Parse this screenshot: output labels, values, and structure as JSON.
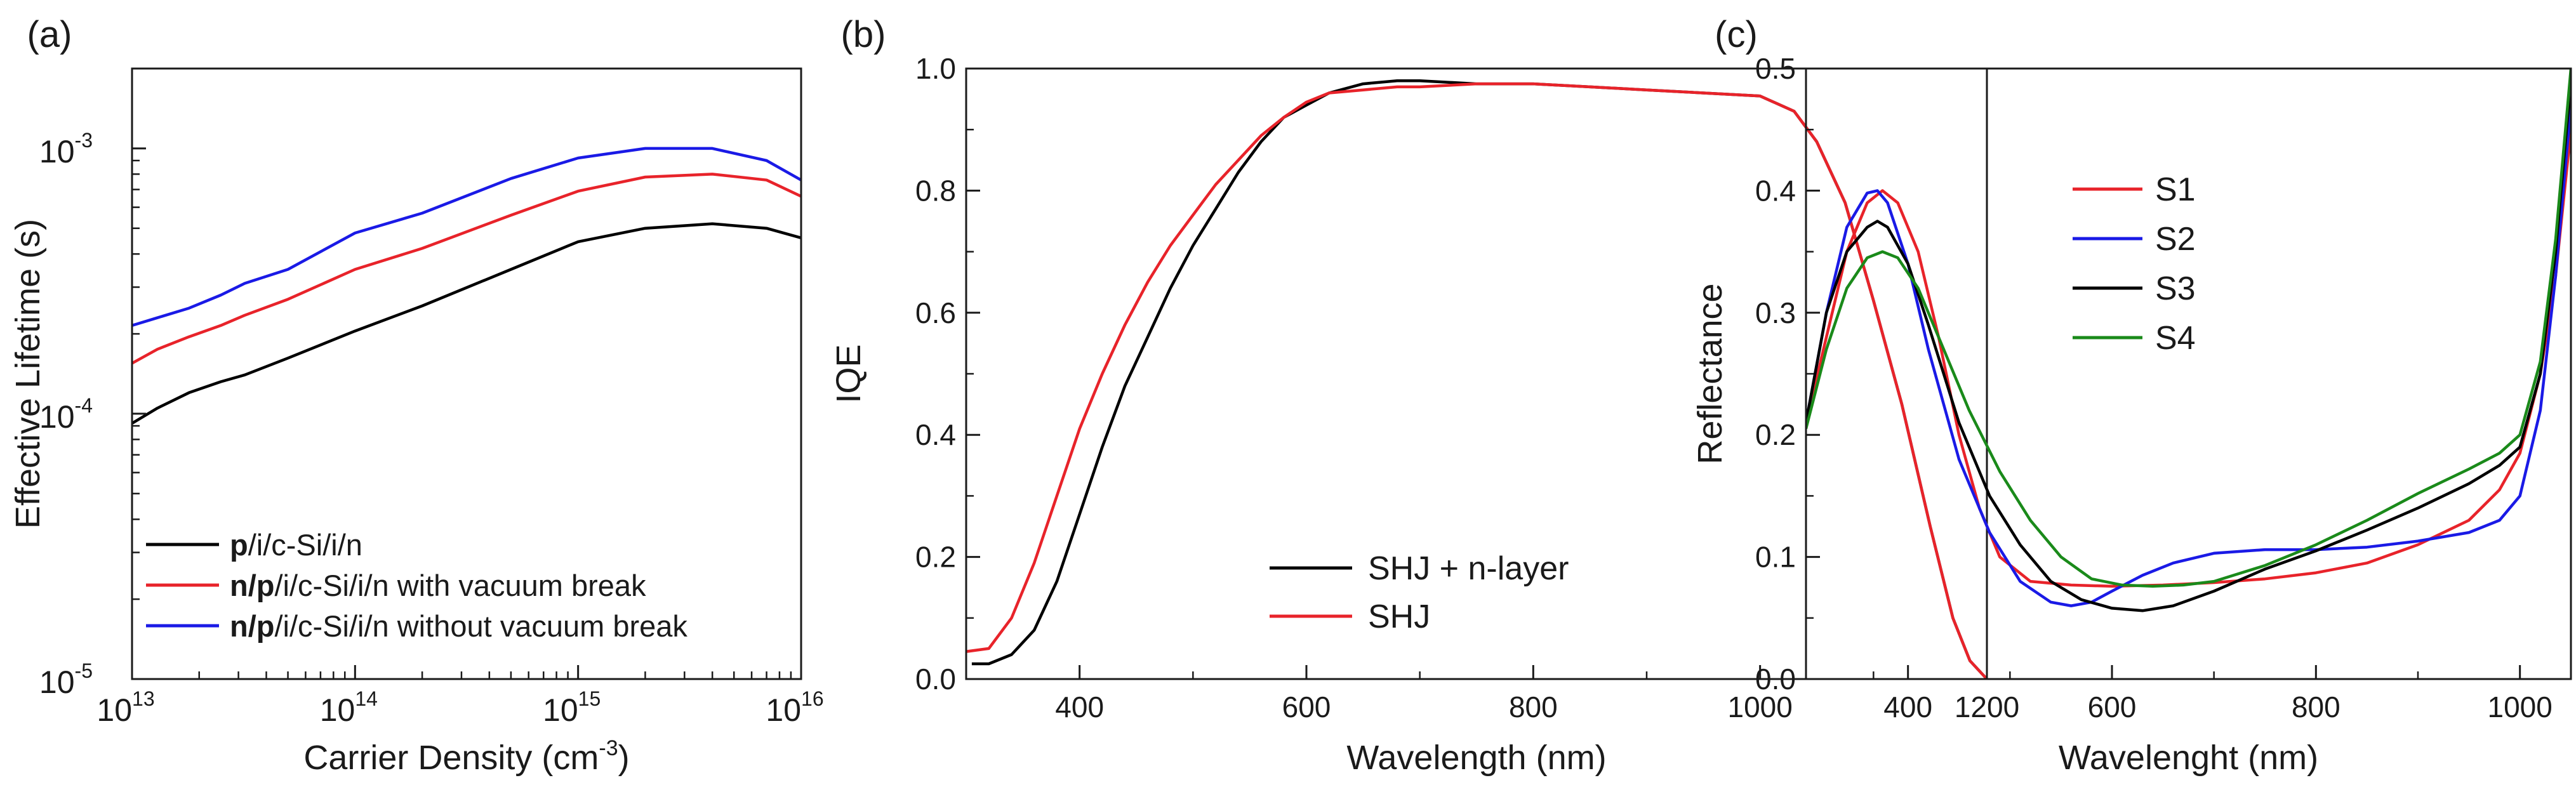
{
  "chart_data": [
    {
      "panel_label": "(a)",
      "type": "line",
      "xlabel": "Carrier Density (cm",
      "xlabel_sup": "-3",
      "xlabel_tail": ")",
      "ylabel": "Effective Lifetime (s)",
      "xscale": "log",
      "yscale": "log",
      "xlim": [
        10000000000000.0,
        1e+16
      ],
      "ylim": [
        1e-05,
        0.002
      ],
      "x_ticks": [
        {
          "value": 10000000000000.0,
          "base": "10",
          "exp": "13"
        },
        {
          "value": 100000000000000.0,
          "base": "10",
          "exp": "14"
        },
        {
          "value": 1000000000000000.0,
          "base": "10",
          "exp": "15"
        },
        {
          "value": 1e+16,
          "base": "10",
          "exp": "16"
        }
      ],
      "y_ticks": [
        {
          "value": 1e-05,
          "base": "10",
          "exp": "-5"
        },
        {
          "value": 0.0001,
          "base": "10",
          "exp": "-4"
        },
        {
          "value": 0.001,
          "base": "10",
          "exp": "-3"
        }
      ],
      "legend_position": "bottom-left",
      "series": [
        {
          "name_bold": "p",
          "name_rest": "/i/c-Si/i/n",
          "color": "#000000",
          "x": [
            10000000000000.0,
            13000000000000.0,
            18000000000000.0,
            25000000000000.0,
            32000000000000.0,
            50000000000000.0,
            100000000000000.0,
            200000000000000.0,
            500000000000000.0,
            1000000000000000.0,
            2000000000000000.0,
            4000000000000000.0,
            7000000000000000.0,
            1e+16
          ],
          "y": [
            9.2e-05,
            0.000105,
            0.00012,
            0.000132,
            0.00014,
            0.000162,
            0.000205,
            0.000255,
            0.00035,
            0.000445,
            0.0005,
            0.00052,
            0.0005,
            0.00046
          ]
        },
        {
          "name_bold": "n/p",
          "name_rest": "/i/c-Si/i/n with vacuum break",
          "color": "#e8232a",
          "x": [
            10000000000000.0,
            13000000000000.0,
            18000000000000.0,
            25000000000000.0,
            32000000000000.0,
            50000000000000.0,
            100000000000000.0,
            200000000000000.0,
            500000000000000.0,
            1000000000000000.0,
            2000000000000000.0,
            4000000000000000.0,
            7000000000000000.0,
            1e+16
          ],
          "y": [
            0.000155,
            0.000175,
            0.000195,
            0.000215,
            0.000235,
            0.00027,
            0.00035,
            0.00042,
            0.00056,
            0.00069,
            0.00078,
            0.0008,
            0.00076,
            0.00066
          ]
        },
        {
          "name_bold": "n/p",
          "name_rest": "/i/c-Si/i/n without vacuum break",
          "color": "#1a1ae6",
          "x": [
            10000000000000.0,
            13000000000000.0,
            18000000000000.0,
            25000000000000.0,
            32000000000000.0,
            50000000000000.0,
            100000000000000.0,
            200000000000000.0,
            500000000000000.0,
            1000000000000000.0,
            2000000000000000.0,
            4000000000000000.0,
            7000000000000000.0,
            1e+16
          ],
          "y": [
            0.000215,
            0.00023,
            0.00025,
            0.00028,
            0.00031,
            0.00035,
            0.00048,
            0.00057,
            0.00077,
            0.00092,
            0.001,
            0.001,
            0.0009,
            0.00076
          ]
        }
      ]
    },
    {
      "panel_label": "(b)",
      "type": "line",
      "xlabel": "Wavelength (nm)",
      "ylabel": "IQE",
      "xlim": [
        300,
        1200
      ],
      "ylim": [
        0,
        1.0
      ],
      "x_ticks": [
        "400",
        "600",
        "800",
        "1000",
        "1200"
      ],
      "x_tick_values": [
        400,
        600,
        800,
        1000,
        1200
      ],
      "y_ticks": [
        "0.0",
        "0.2",
        "0.4",
        "0.6",
        "0.8",
        "1.0"
      ],
      "y_tick_values": [
        0,
        0.2,
        0.4,
        0.6,
        0.8,
        1.0
      ],
      "legend_position": "bottom-right",
      "series": [
        {
          "name": "SHJ + n-layer",
          "color": "#000000",
          "x": [
            305,
            320,
            340,
            360,
            380,
            400,
            420,
            440,
            460,
            480,
            500,
            520,
            540,
            560,
            580,
            600,
            620,
            650,
            680,
            700,
            750,
            800,
            850,
            900,
            950,
            1000,
            1030,
            1050,
            1075,
            1100,
            1125,
            1150,
            1170,
            1185,
            1200
          ],
          "y": [
            0.025,
            0.025,
            0.04,
            0.08,
            0.16,
            0.27,
            0.38,
            0.48,
            0.56,
            0.64,
            0.71,
            0.77,
            0.83,
            0.88,
            0.92,
            0.94,
            0.96,
            0.975,
            0.98,
            0.98,
            0.975,
            0.975,
            0.97,
            0.965,
            0.96,
            0.955,
            0.93,
            0.88,
            0.78,
            0.62,
            0.45,
            0.25,
            0.1,
            0.03,
            0.0
          ]
        },
        {
          "name": "SHJ",
          "color": "#e8232a",
          "x": [
            300,
            320,
            340,
            360,
            380,
            400,
            420,
            440,
            460,
            480,
            500,
            520,
            540,
            560,
            580,
            600,
            620,
            650,
            680,
            700,
            750,
            800,
            850,
            900,
            950,
            1000,
            1030,
            1050,
            1075,
            1100,
            1125,
            1150,
            1170,
            1185,
            1200
          ],
          "y": [
            0.045,
            0.05,
            0.1,
            0.19,
            0.3,
            0.41,
            0.5,
            0.58,
            0.65,
            0.71,
            0.76,
            0.81,
            0.85,
            0.89,
            0.92,
            0.945,
            0.96,
            0.965,
            0.97,
            0.97,
            0.975,
            0.975,
            0.97,
            0.965,
            0.96,
            0.955,
            0.93,
            0.88,
            0.78,
            0.62,
            0.45,
            0.25,
            0.1,
            0.03,
            0.0
          ]
        }
      ]
    },
    {
      "panel_label": "(c)",
      "type": "line",
      "xlabel": "Wavelenght (nm)",
      "ylabel": "Reflectance",
      "xlim": [
        300,
        1050
      ],
      "ylim": [
        0,
        0.5
      ],
      "x_ticks": [
        "400",
        "600",
        "800",
        "1000"
      ],
      "x_tick_values": [
        400,
        600,
        800,
        1000
      ],
      "y_ticks": [
        "0.0",
        "0.1",
        "0.2",
        "0.3",
        "0.4",
        "0.5"
      ],
      "y_tick_values": [
        0,
        0.1,
        0.2,
        0.3,
        0.4,
        0.5
      ],
      "legend_position": "top-right",
      "series": [
        {
          "name": "S1",
          "color": "#e8232a",
          "x": [
            300,
            320,
            340,
            360,
            375,
            390,
            410,
            430,
            450,
            470,
            490,
            520,
            560,
            600,
            650,
            700,
            750,
            800,
            850,
            900,
            950,
            980,
            1000,
            1020,
            1035,
            1050
          ],
          "y": [
            0.21,
            0.28,
            0.35,
            0.39,
            0.4,
            0.39,
            0.35,
            0.28,
            0.2,
            0.14,
            0.1,
            0.08,
            0.077,
            0.076,
            0.077,
            0.079,
            0.082,
            0.087,
            0.095,
            0.11,
            0.13,
            0.155,
            0.185,
            0.25,
            0.33,
            0.45
          ]
        },
        {
          "name": "S2",
          "color": "#1a1ae6",
          "x": [
            300,
            320,
            340,
            360,
            370,
            380,
            400,
            420,
            450,
            480,
            510,
            540,
            560,
            580,
            600,
            630,
            660,
            700,
            750,
            800,
            850,
            900,
            950,
            980,
            1000,
            1020,
            1035,
            1050
          ],
          "y": [
            0.21,
            0.3,
            0.37,
            0.398,
            0.4,
            0.39,
            0.34,
            0.27,
            0.18,
            0.12,
            0.08,
            0.063,
            0.06,
            0.063,
            0.072,
            0.085,
            0.095,
            0.103,
            0.106,
            0.106,
            0.108,
            0.113,
            0.12,
            0.13,
            0.15,
            0.22,
            0.33,
            0.47
          ]
        },
        {
          "name": "S3",
          "color": "#000000",
          "x": [
            300,
            320,
            340,
            360,
            370,
            380,
            400,
            420,
            450,
            480,
            510,
            540,
            570,
            600,
            630,
            660,
            700,
            750,
            800,
            850,
            900,
            950,
            980,
            1000,
            1020,
            1035,
            1050
          ],
          "y": [
            0.21,
            0.3,
            0.35,
            0.37,
            0.375,
            0.37,
            0.34,
            0.29,
            0.21,
            0.15,
            0.11,
            0.08,
            0.065,
            0.058,
            0.056,
            0.06,
            0.072,
            0.09,
            0.105,
            0.122,
            0.14,
            0.16,
            0.175,
            0.19,
            0.25,
            0.35,
            0.49
          ]
        },
        {
          "name": "S4",
          "color": "#1a8a1a",
          "x": [
            300,
            320,
            340,
            360,
            375,
            390,
            410,
            430,
            460,
            490,
            520,
            550,
            580,
            610,
            640,
            670,
            700,
            750,
            800,
            850,
            900,
            950,
            980,
            1000,
            1020,
            1035,
            1050
          ],
          "y": [
            0.205,
            0.27,
            0.32,
            0.345,
            0.35,
            0.345,
            0.32,
            0.28,
            0.22,
            0.17,
            0.13,
            0.1,
            0.082,
            0.077,
            0.076,
            0.077,
            0.08,
            0.093,
            0.11,
            0.13,
            0.152,
            0.172,
            0.185,
            0.2,
            0.26,
            0.36,
            0.5
          ]
        }
      ]
    }
  ]
}
